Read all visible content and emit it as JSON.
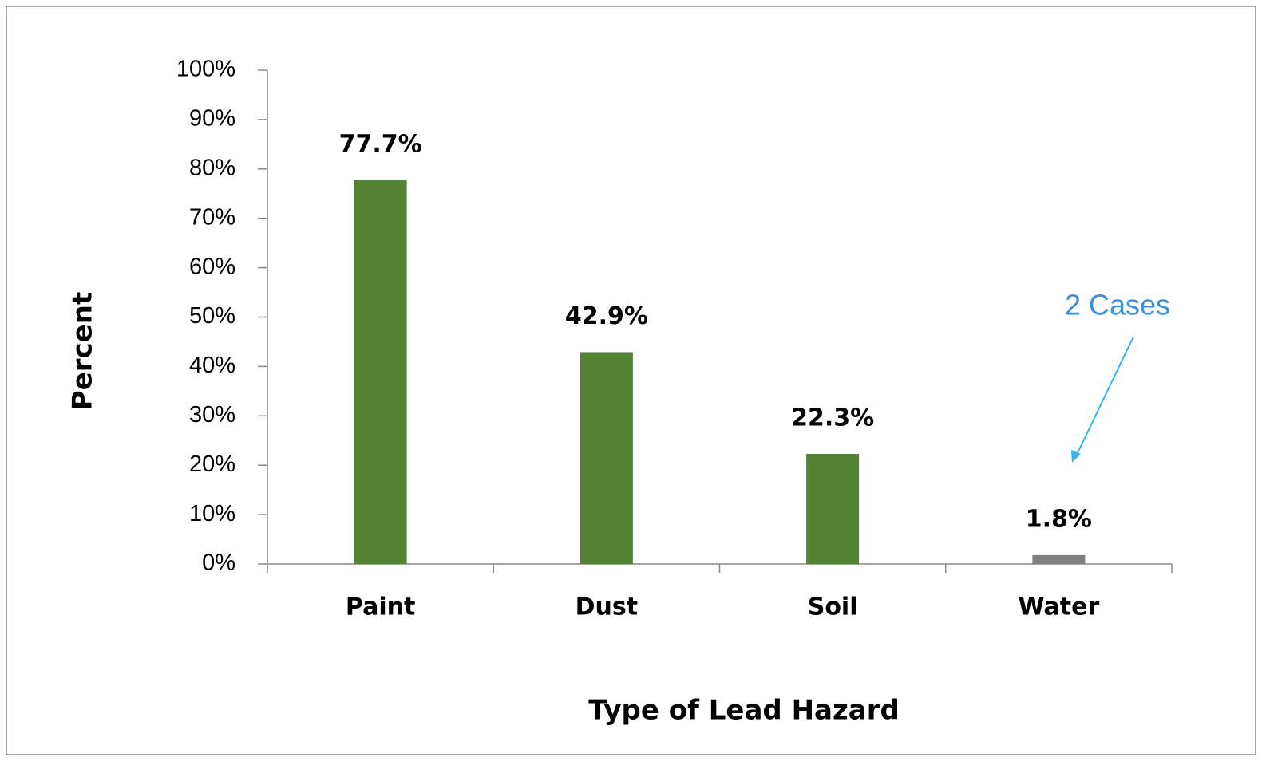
{
  "chart_data": {
    "type": "bar",
    "xlabel": "Type of Lead Hazard",
    "ylabel": "Percent",
    "categories": [
      "Paint",
      "Dust",
      "Soil",
      "Water"
    ],
    "values": [
      77.7,
      42.9,
      22.3,
      1.8
    ],
    "value_labels": [
      "77.7%",
      "42.9%",
      "22.3%",
      "1.8%"
    ],
    "colors": [
      "#548235",
      "#548235",
      "#548235",
      "#808080"
    ],
    "ylim": [
      0,
      100
    ],
    "yticks": [
      {
        "value": 0,
        "label": "0%"
      },
      {
        "value": 10,
        "label": "10%"
      },
      {
        "value": 20,
        "label": "20%"
      },
      {
        "value": 30,
        "label": "30%"
      },
      {
        "value": 40,
        "label": "40%"
      },
      {
        "value": 50,
        "label": "50%"
      },
      {
        "value": 60,
        "label": "60%"
      },
      {
        "value": 70,
        "label": "70%"
      },
      {
        "value": 80,
        "label": "80%"
      },
      {
        "value": 90,
        "label": "90%"
      },
      {
        "value": 100,
        "label": "100%"
      }
    ],
    "grid": false,
    "annotation": "2 Cases"
  }
}
